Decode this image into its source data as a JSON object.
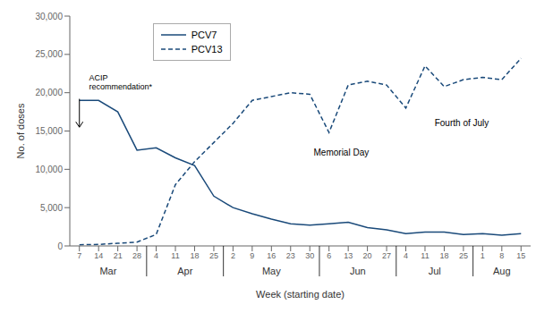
{
  "chart_data": {
    "type": "line",
    "xlabel": "Week (starting date)",
    "ylabel": "No. of doses",
    "categories": [
      "7",
      "14",
      "21",
      "28",
      "4",
      "11",
      "18",
      "25",
      "2",
      "9",
      "16",
      "23",
      "30",
      "6",
      "13",
      "20",
      "27",
      "4",
      "11",
      "18",
      "25",
      "1",
      "8",
      "15"
    ],
    "x_groups": [
      {
        "label": "Mar",
        "count": 4
      },
      {
        "label": "Apr",
        "count": 4
      },
      {
        "label": "May",
        "count": 5
      },
      {
        "label": "Jun",
        "count": 4
      },
      {
        "label": "Jul",
        "count": 4
      },
      {
        "label": "Aug",
        "count": 3
      }
    ],
    "series": [
      {
        "name": "PCV7",
        "color": "#1a4a7a",
        "line_style": "solid",
        "values": [
          19000,
          19000,
          17500,
          12500,
          12800,
          11500,
          10500,
          6500,
          5000,
          4200,
          3500,
          2900,
          2700,
          2900,
          3100,
          2400,
          2100,
          1600,
          1800,
          1800,
          1500,
          1600,
          1400,
          1600
        ]
      },
      {
        "name": "PCV13",
        "color": "#1a4a7a",
        "line_style": "dashed",
        "values": [
          150,
          200,
          350,
          500,
          1500,
          8000,
          11000,
          13500,
          16000,
          19000,
          19500,
          20000,
          19800,
          14800,
          21000,
          21500,
          21000,
          18000,
          23500,
          20800,
          21700,
          22000,
          21700,
          24500
        ]
      }
    ],
    "ylim": [
      0,
      30000
    ],
    "yticks": [
      0,
      {
        "value": 5000,
        "label": "5,000"
      },
      {
        "value": 10000,
        "label": "10,000"
      },
      {
        "value": 15000,
        "label": "15,000"
      },
      {
        "value": 20000,
        "label": "20,000"
      },
      {
        "value": 25000,
        "label": "25,000"
      },
      {
        "value": 30000,
        "label": "30,000"
      }
    ],
    "grid": false,
    "legend": "upper left",
    "annotations": [
      {
        "text": "ACIP\nrecommendation*",
        "x": 0.5,
        "y": 20200,
        "arrow": {
          "x": 0,
          "y_start": 19200,
          "y_end": 15500
        }
      },
      {
        "text": "Memorial Day",
        "x": 12.2,
        "y": 13000
      },
      {
        "text": "Fourth of July",
        "x": 18.5,
        "y": 16800
      }
    ]
  }
}
